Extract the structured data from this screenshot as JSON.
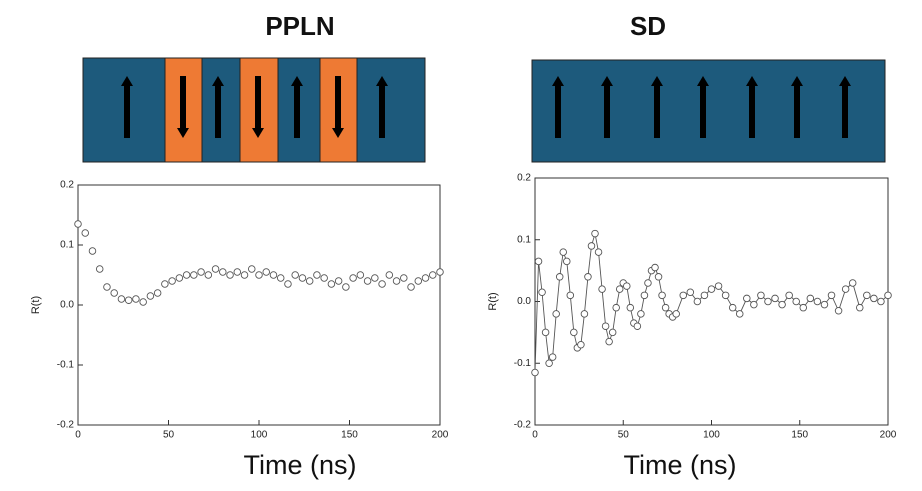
{
  "chart_data": [
    {
      "type": "scatter",
      "title": "PPLN",
      "xlabel": "Time (ns)",
      "ylabel": "R(t)",
      "x": [
        0,
        4,
        8,
        12,
        16,
        20,
        24,
        28,
        32,
        36,
        40,
        44,
        48,
        52,
        56,
        60,
        64,
        68,
        72,
        76,
        80,
        84,
        88,
        92,
        96,
        100,
        104,
        108,
        112,
        116,
        120,
        124,
        128,
        132,
        136,
        140,
        144,
        148,
        152,
        156,
        160,
        164,
        168,
        172,
        176,
        180,
        184,
        188,
        192,
        196,
        200
      ],
      "values": [
        0.135,
        0.12,
        0.09,
        0.06,
        0.03,
        0.02,
        0.01,
        0.008,
        0.01,
        0.005,
        0.015,
        0.02,
        0.035,
        0.04,
        0.045,
        0.05,
        0.05,
        0.055,
        0.05,
        0.06,
        0.055,
        0.05,
        0.055,
        0.05,
        0.06,
        0.05,
        0.055,
        0.05,
        0.045,
        0.035,
        0.05,
        0.045,
        0.04,
        0.05,
        0.045,
        0.035,
        0.04,
        0.03,
        0.045,
        0.05,
        0.04,
        0.045,
        0.035,
        0.05,
        0.04,
        0.045,
        0.03,
        0.04,
        0.045,
        0.05,
        0.055
      ],
      "xlim": [
        0,
        200
      ],
      "ylim": [
        -0.2,
        0.2
      ],
      "xticks": [
        0,
        50,
        100,
        150,
        200
      ],
      "yticks": [
        -0.2,
        -0.1,
        {
          "value": 0,
          "label": "0.0"
        },
        0.1,
        0.2
      ],
      "color": "#555555"
    },
    {
      "type": "line",
      "title": "SD",
      "xlabel": "Time (ns)",
      "ylabel": "R(t)",
      "x": [
        0,
        2,
        4,
        6,
        8,
        10,
        12,
        14,
        16,
        18,
        20,
        22,
        24,
        26,
        28,
        30,
        32,
        34,
        36,
        38,
        40,
        42,
        44,
        46,
        48,
        50,
        52,
        54,
        56,
        58,
        60,
        62,
        64,
        66,
        68,
        70,
        72,
        74,
        76,
        78,
        80,
        84,
        88,
        92,
        96,
        100,
        104,
        108,
        112,
        116,
        120,
        124,
        128,
        132,
        136,
        140,
        144,
        148,
        152,
        156,
        160,
        164,
        168,
        172,
        176,
        180,
        184,
        188,
        192,
        196,
        200
      ],
      "values": [
        -0.115,
        0.065,
        0.015,
        -0.05,
        -0.1,
        -0.09,
        -0.02,
        0.04,
        0.08,
        0.065,
        0.01,
        -0.05,
        -0.075,
        -0.07,
        -0.02,
        0.04,
        0.09,
        0.11,
        0.08,
        0.02,
        -0.04,
        -0.065,
        -0.05,
        -0.01,
        0.02,
        0.03,
        0.025,
        -0.01,
        -0.035,
        -0.04,
        -0.02,
        0.01,
        0.03,
        0.05,
        0.055,
        0.04,
        0.01,
        -0.01,
        -0.02,
        -0.025,
        -0.02,
        0.01,
        0.015,
        0.0,
        0.01,
        0.02,
        0.025,
        0.01,
        -0.01,
        -0.02,
        0.005,
        -0.005,
        0.01,
        0.0,
        0.005,
        -0.005,
        0.01,
        0.0,
        -0.01,
        0.005,
        0.0,
        -0.005,
        0.01,
        -0.015,
        0.02,
        0.03,
        -0.01,
        0.01,
        0.005,
        0.0,
        0.01
      ],
      "xlim": [
        0,
        200
      ],
      "ylim": [
        -0.2,
        0.2
      ],
      "xticks": [
        0,
        50,
        100,
        150,
        200
      ],
      "yticks": [
        -0.2,
        -0.1,
        {
          "value": 0,
          "label": "0.0"
        },
        0.1,
        0.2
      ],
      "color": "#555555"
    }
  ]
}
